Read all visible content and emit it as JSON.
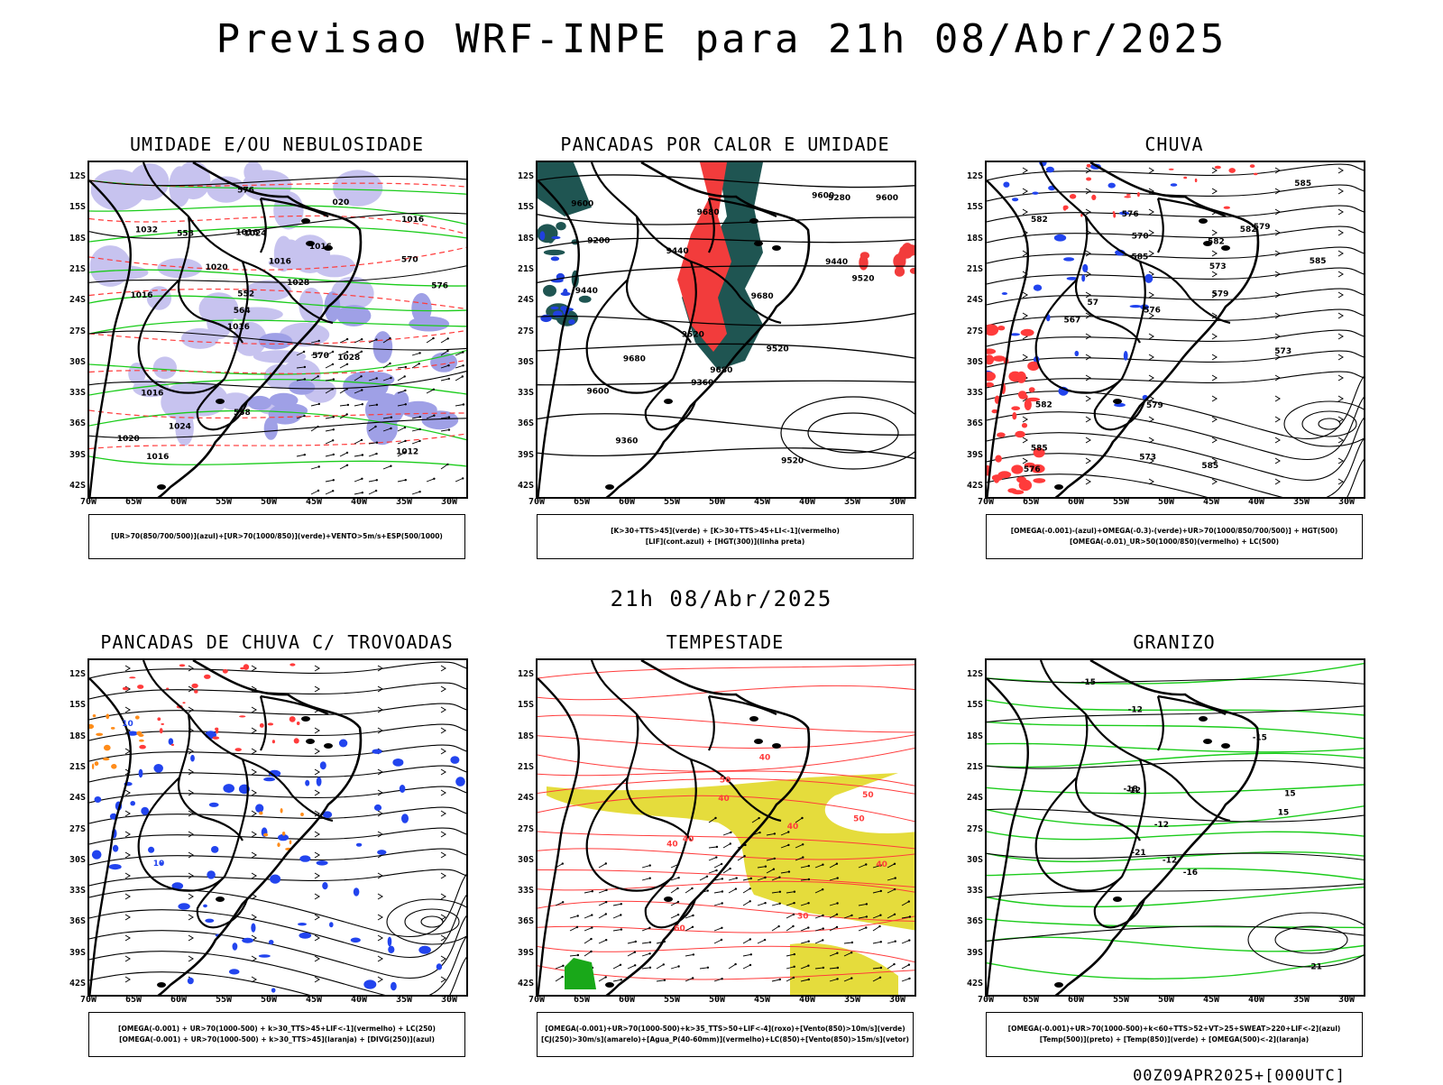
{
  "page_title": "Previsao WRF-INPE  para 21h 08/Abr/2025",
  "mid_title": "21h 08/Abr/2025",
  "footer_stamp": "00Z09APR2025+[000UTC]",
  "lat_labels": [
    "12S",
    "15S",
    "18S",
    "21S",
    "24S",
    "27S",
    "30S",
    "33S",
    "36S",
    "39S",
    "42S"
  ],
  "lon_labels": [
    "70W",
    "65W",
    "60W",
    "55W",
    "50W",
    "45W",
    "40W",
    "35W",
    "30W"
  ],
  "panels": [
    {
      "title": "UMIDADE E/OU NEBULOSIDADE",
      "legend": [
        "[UR>70(850/700/500)](azul)+[UR>70(1000/850)](verde)+VENTO>5m/s+ESP(500/1000)"
      ],
      "labels": [
        "1012",
        "1016",
        "1016",
        "1016",
        "1016",
        "1016",
        "1016",
        "1016",
        "1016",
        "1020",
        "1020",
        "1024",
        "1024",
        "1028",
        "1028",
        "1032",
        "576",
        "576",
        "570",
        "570",
        "564",
        "558",
        "552",
        "558",
        "020"
      ]
    },
    {
      "title": "PANCADAS POR CALOR E UMIDADE",
      "legend": [
        "[K>30+TTS>45](verde) + [K>30+TTS>45+LI<-1](vermelho)",
        "[LIF](cont.azul) + [HGT(300)](linha preta)"
      ],
      "labels": [
        "9680",
        "9680",
        "9680",
        "9680",
        "9600",
        "9600",
        "9600",
        "9600",
        "9520",
        "9520",
        "9520",
        "9520",
        "9440",
        "9440",
        "9440",
        "9360",
        "9360",
        "9280",
        "9200"
      ]
    },
    {
      "title": "CHUVA",
      "legend": [
        "[OMEGA(-0.001)-(azul)+OMEGA(-0.3)-(verde)+UR>70(1000/850/700/500)] + HGT(500)",
        "[OMEGA(-0.01)_UR>50(1000/850)(vermelho) + LC(500)"
      ],
      "labels": [
        "585",
        "585",
        "585",
        "585",
        "585",
        "582",
        "582",
        "582",
        "582",
        "579",
        "579",
        "579",
        "576",
        "576",
        "573",
        "573",
        "573",
        "570",
        "567",
        "576",
        "57"
      ]
    },
    {
      "title": "PANCADAS DE CHUVA C/ TROVOADAS",
      "legend": [
        "[OMEGA(-0.001) + UR>70(1000-500) + k>30_TTS>45+LIF<-1](vermelho) + LC(250)",
        "[OMEGA(-0.001) + UR>70(1000-500) + k>30_TTS>45](laranja) + [DIVG(250)](azul)"
      ],
      "labels": [
        "10",
        "10"
      ]
    },
    {
      "title": "TEMPESTADE",
      "legend": [
        "[OMEGA(-0.001)+UR>70(1000-500)+k>35_TTS>50+LIF<-4](roxo)+[Vento(850)>10m/s](verde)",
        "[CJ(250)>30m/s](amarelo)+[Agua_P(40-60mm)](vermelho)+LC(850)+[Vento(850)>15m/s](vetor)"
      ],
      "labels": [
        "60",
        "50",
        "50",
        "50",
        "40",
        "40",
        "40",
        "40",
        "40",
        "30",
        "40"
      ]
    },
    {
      "title": "GRANIZO",
      "legend": [
        "[OMEGA(-0.001)+UR>70(1000-500)+k<60+TTS>52+VT>25+SWEAT>220+LIF<-2](azul)",
        "[Temp(500)](preto) + [Temp(850)](verde) + [OMEGA(500)<-2](laranja)"
      ],
      "labels": [
        "-15",
        "-12",
        "-12",
        "-15",
        "-12",
        "-16",
        "-18",
        "-21",
        "-21",
        "-12",
        "15",
        "15"
      ]
    }
  ]
}
